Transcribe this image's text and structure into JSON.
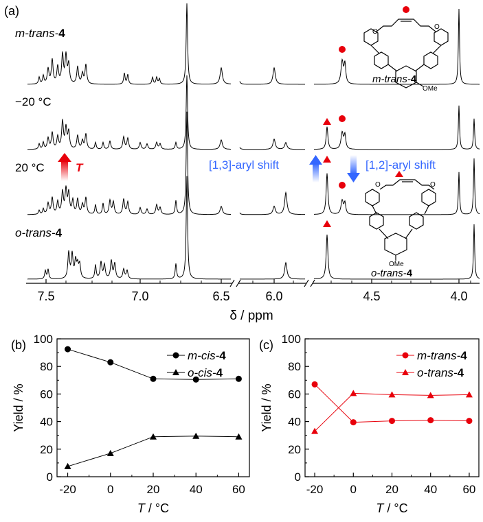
{
  "panel_a": {
    "label": "(a)",
    "trace_labels": [
      {
        "key": "m",
        "prefix": "m-trans-",
        "bold": "4"
      },
      {
        "key": "m20",
        "text": "−20 °C"
      },
      {
        "key": "p20",
        "text": "20 °C"
      },
      {
        "key": "o",
        "prefix": "o-trans-",
        "bold": "4"
      }
    ],
    "temperature_symbol": "T",
    "shift_13": "[1,3]-aryl shift",
    "shift_12": "[1,2]-aryl shift",
    "struct_m": {
      "prefix": "m-trans-",
      "bold": "4"
    },
    "struct_o": {
      "prefix": "o-trans-",
      "bold": "4"
    },
    "ome_label": "OMe",
    "o_label": "O",
    "axis_label": "δ / ppm",
    "ticks": [
      "7.5",
      "7.0",
      "6.5",
      "6.0",
      "4.5",
      "4.0"
    ],
    "colors": {
      "red": "#e8000b",
      "blue": "#3366ff"
    }
  },
  "chart_data": [
    {
      "type": "scatter",
      "panel": "(b)",
      "xlabel_symbol": "T",
      "xlabel_unit": " / °C",
      "ylabel": "Yield / %",
      "x_ticks": [
        "-20",
        "0",
        "20",
        "40",
        "60"
      ],
      "y_ticks": [
        "0",
        "20",
        "40",
        "60",
        "80",
        "100"
      ],
      "xlim": [
        -25,
        65
      ],
      "ylim": [
        0,
        100
      ],
      "color": "#000000",
      "x": [
        -20,
        0,
        20,
        40,
        60
      ],
      "series": [
        {
          "name_prefix": "m-cis-",
          "name_bold": "4",
          "marker": "circle",
          "values": [
            92.5,
            83,
            71,
            70.5,
            71
          ]
        },
        {
          "name_prefix": "o-cis-",
          "name_bold": "4",
          "marker": "triangle",
          "values": [
            7.5,
            17,
            29,
            29.5,
            29
          ]
        }
      ],
      "legend": "top-right"
    },
    {
      "type": "scatter",
      "panel": "(c)",
      "xlabel_symbol": "T",
      "xlabel_unit": " / °C",
      "ylabel": "Yield / %",
      "x_ticks": [
        "-20",
        "0",
        "20",
        "40",
        "60"
      ],
      "y_ticks": [
        "0",
        "20",
        "40",
        "60",
        "80",
        "100"
      ],
      "xlim": [
        -25,
        65
      ],
      "ylim": [
        0,
        100
      ],
      "color": "#e8000b",
      "x": [
        -20,
        0,
        20,
        40,
        60
      ],
      "series": [
        {
          "name_prefix": "m-trans-",
          "name_bold": "4",
          "marker": "circle",
          "values": [
            67,
            39.5,
            40.5,
            41,
            40.5
          ]
        },
        {
          "name_prefix": "o-trans-",
          "name_bold": "4",
          "marker": "triangle",
          "values": [
            33,
            60.5,
            59.5,
            59,
            59.5
          ]
        }
      ],
      "legend": "top-right"
    }
  ]
}
